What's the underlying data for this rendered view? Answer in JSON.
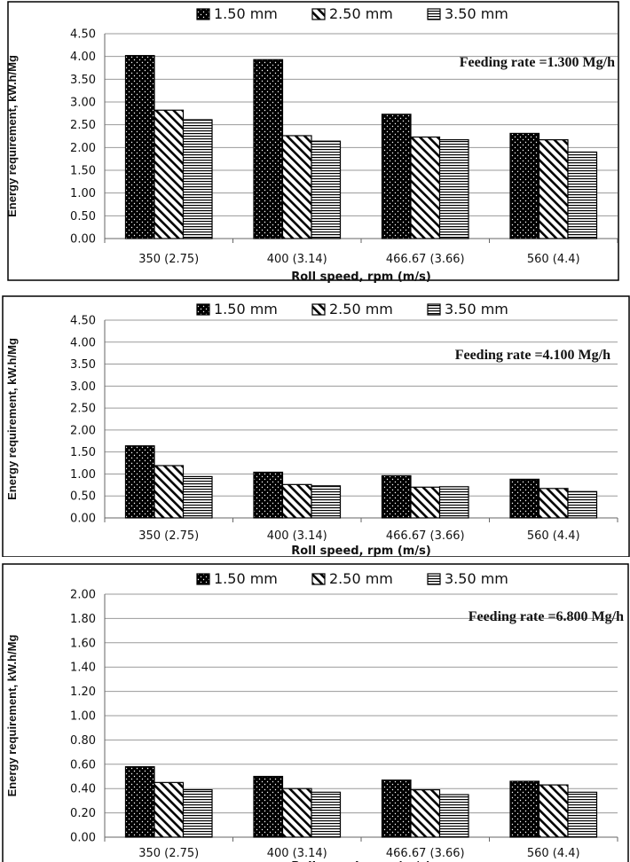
{
  "chart_data": [
    {
      "type": "bar",
      "annotation": "Feeding rate =1.300 Mg/h",
      "xlabel": "Roll speed, rpm (m/s)",
      "ylabel": "Energy requirement, kW.h/Mg",
      "ylim": [
        0,
        4.5
      ],
      "ytick_step": 0.5,
      "ytick_decimals": 2,
      "grid": true,
      "legend_position": "top",
      "categories": [
        "350 (2.75)",
        "400 (3.14)",
        "466.67 (3.66)",
        "560 (4.4)"
      ],
      "series": [
        {
          "name": "1.50 mm",
          "pattern": "dots",
          "values": [
            4.02,
            3.93,
            2.73,
            2.31
          ]
        },
        {
          "name": "2.50 mm",
          "pattern": "diagonal",
          "values": [
            2.82,
            2.26,
            2.23,
            2.17
          ]
        },
        {
          "name": "3.50 mm",
          "pattern": "horizontal",
          "values": [
            2.61,
            2.14,
            2.17,
            1.9
          ]
        }
      ]
    },
    {
      "type": "bar",
      "annotation": "Feeding rate =4.100 Mg/h",
      "xlabel": "Roll speed, rpm (m/s)",
      "ylabel": "Energy requirement, kW.h/Mg",
      "ylim": [
        0,
        4.5
      ],
      "ytick_step": 0.5,
      "ytick_decimals": 2,
      "grid": true,
      "legend_position": "top",
      "categories": [
        "350 (2.75)",
        "400 (3.14)",
        "466.67 (3.66)",
        "560 (4.4)"
      ],
      "series": [
        {
          "name": "1.50 mm",
          "pattern": "dots",
          "values": [
            1.64,
            1.04,
            0.96,
            0.88
          ]
        },
        {
          "name": "2.50 mm",
          "pattern": "diagonal",
          "values": [
            1.19,
            0.76,
            0.7,
            0.67
          ]
        },
        {
          "name": "3.50 mm",
          "pattern": "horizontal",
          "values": [
            0.94,
            0.73,
            0.71,
            0.6
          ]
        }
      ]
    },
    {
      "type": "bar",
      "annotation": "Feeding rate =6.800 Mg/h",
      "xlabel": "Roll speed, rpm (m/s)",
      "ylabel": "Energy requirement, kW.h/Mg",
      "ylim": [
        0,
        2.0
      ],
      "ytick_step": 0.2,
      "ytick_decimals": 2,
      "grid": true,
      "legend_position": "top",
      "categories": [
        "350 (2.75)",
        "400 (3.14)",
        "466.67 (3.66)",
        "560 (4.4)"
      ],
      "series": [
        {
          "name": "1.50 mm",
          "pattern": "dots",
          "values": [
            0.58,
            0.5,
            0.47,
            0.46
          ]
        },
        {
          "name": "2.50 mm",
          "pattern": "diagonal",
          "values": [
            0.45,
            0.4,
            0.39,
            0.43
          ]
        },
        {
          "name": "3.50 mm",
          "pattern": "horizontal",
          "values": [
            0.39,
            0.37,
            0.35,
            0.37
          ]
        }
      ]
    }
  ]
}
